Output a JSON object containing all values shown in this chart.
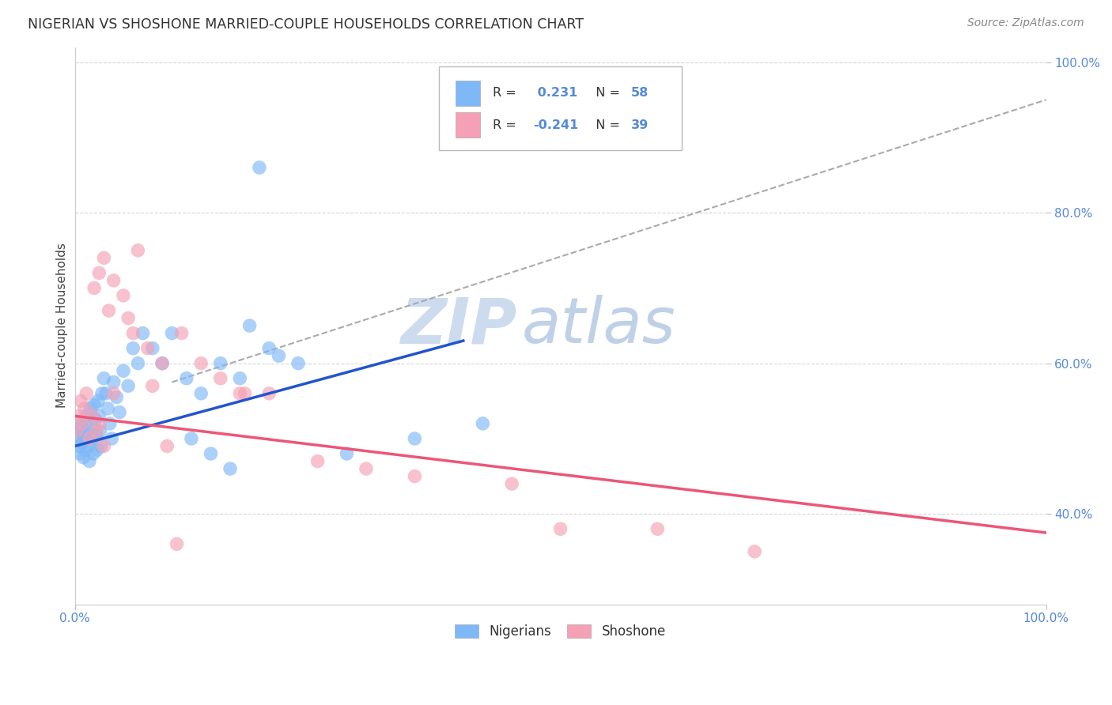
{
  "title": "NIGERIAN VS SHOSHONE MARRIED-COUPLE HOUSEHOLDS CORRELATION CHART",
  "source": "Source: ZipAtlas.com",
  "ylabel": "Married-couple Households",
  "xlim": [
    0.0,
    1.0
  ],
  "ylim": [
    0.28,
    1.02
  ],
  "ytick_labels": [
    "40.0%",
    "60.0%",
    "80.0%",
    "100.0%"
  ],
  "ytick_positions": [
    0.4,
    0.6,
    0.8,
    1.0
  ],
  "xtick_labels": [
    "0.0%",
    "100.0%"
  ],
  "xtick_positions": [
    0.0,
    1.0
  ],
  "nigerian_R": 0.231,
  "nigerian_N": 58,
  "shoshone_R": -0.241,
  "shoshone_N": 39,
  "nigerian_color": "#7EB8F7",
  "shoshone_color": "#F5A0B5",
  "nigerian_line_color": "#2255CC",
  "shoshone_line_color": "#EE5577",
  "grey_line_color": "#AAAAAA",
  "background_color": "#FFFFFF",
  "grid_color": "#CCCCCC",
  "tick_color": "#5588DD",
  "title_color": "#333333",
  "source_color": "#888888",
  "watermark_text": "ZIPatlas",
  "watermark_color": "#C8D8EE",
  "legend_box_color": "#DDDDDD",
  "nigerian_x": [
    0.002,
    0.003,
    0.004,
    0.005,
    0.006,
    0.007,
    0.008,
    0.009,
    0.01,
    0.011,
    0.012,
    0.013,
    0.014,
    0.015,
    0.016,
    0.017,
    0.018,
    0.019,
    0.02,
    0.021,
    0.022,
    0.023,
    0.024,
    0.025,
    0.026,
    0.027,
    0.028,
    0.03,
    0.032,
    0.034,
    0.036,
    0.038,
    0.04,
    0.043,
    0.046,
    0.05,
    0.055,
    0.06,
    0.065,
    0.07,
    0.08,
    0.09,
    0.1,
    0.115,
    0.13,
    0.15,
    0.17,
    0.2,
    0.23,
    0.18,
    0.16,
    0.14,
    0.12,
    0.28,
    0.35,
    0.42,
    0.19,
    0.21
  ],
  "nigerian_y": [
    0.5,
    0.51,
    0.49,
    0.48,
    0.52,
    0.515,
    0.495,
    0.475,
    0.505,
    0.485,
    0.53,
    0.51,
    0.49,
    0.47,
    0.54,
    0.52,
    0.5,
    0.48,
    0.545,
    0.525,
    0.505,
    0.485,
    0.55,
    0.53,
    0.51,
    0.49,
    0.56,
    0.58,
    0.56,
    0.54,
    0.52,
    0.5,
    0.575,
    0.555,
    0.535,
    0.59,
    0.57,
    0.62,
    0.6,
    0.64,
    0.62,
    0.6,
    0.64,
    0.58,
    0.56,
    0.6,
    0.58,
    0.62,
    0.6,
    0.65,
    0.46,
    0.48,
    0.5,
    0.48,
    0.5,
    0.52,
    0.86,
    0.61
  ],
  "shoshone_x": [
    0.002,
    0.004,
    0.006,
    0.008,
    0.01,
    0.012,
    0.015,
    0.018,
    0.022,
    0.026,
    0.03,
    0.035,
    0.04,
    0.05,
    0.06,
    0.075,
    0.09,
    0.11,
    0.13,
    0.15,
    0.04,
    0.055,
    0.02,
    0.025,
    0.03,
    0.175,
    0.2,
    0.25,
    0.3,
    0.35,
    0.45,
    0.6,
    0.7,
    0.5,
    0.065,
    0.08,
    0.17,
    0.095,
    0.105
  ],
  "shoshone_y": [
    0.51,
    0.53,
    0.55,
    0.52,
    0.54,
    0.56,
    0.5,
    0.53,
    0.51,
    0.52,
    0.49,
    0.67,
    0.71,
    0.69,
    0.64,
    0.62,
    0.6,
    0.64,
    0.6,
    0.58,
    0.56,
    0.66,
    0.7,
    0.72,
    0.74,
    0.56,
    0.56,
    0.47,
    0.46,
    0.45,
    0.44,
    0.38,
    0.35,
    0.38,
    0.75,
    0.57,
    0.56,
    0.49,
    0.36
  ],
  "nig_line_x0": 0.0,
  "nig_line_y0": 0.49,
  "nig_line_x1": 0.4,
  "nig_line_y1": 0.63,
  "sho_line_x0": 0.0,
  "sho_line_y0": 0.53,
  "sho_line_x1": 1.0,
  "sho_line_y1": 0.375,
  "grey_line_x0": 0.1,
  "grey_line_y0": 0.575,
  "grey_line_x1": 1.0,
  "grey_line_y1": 0.95
}
